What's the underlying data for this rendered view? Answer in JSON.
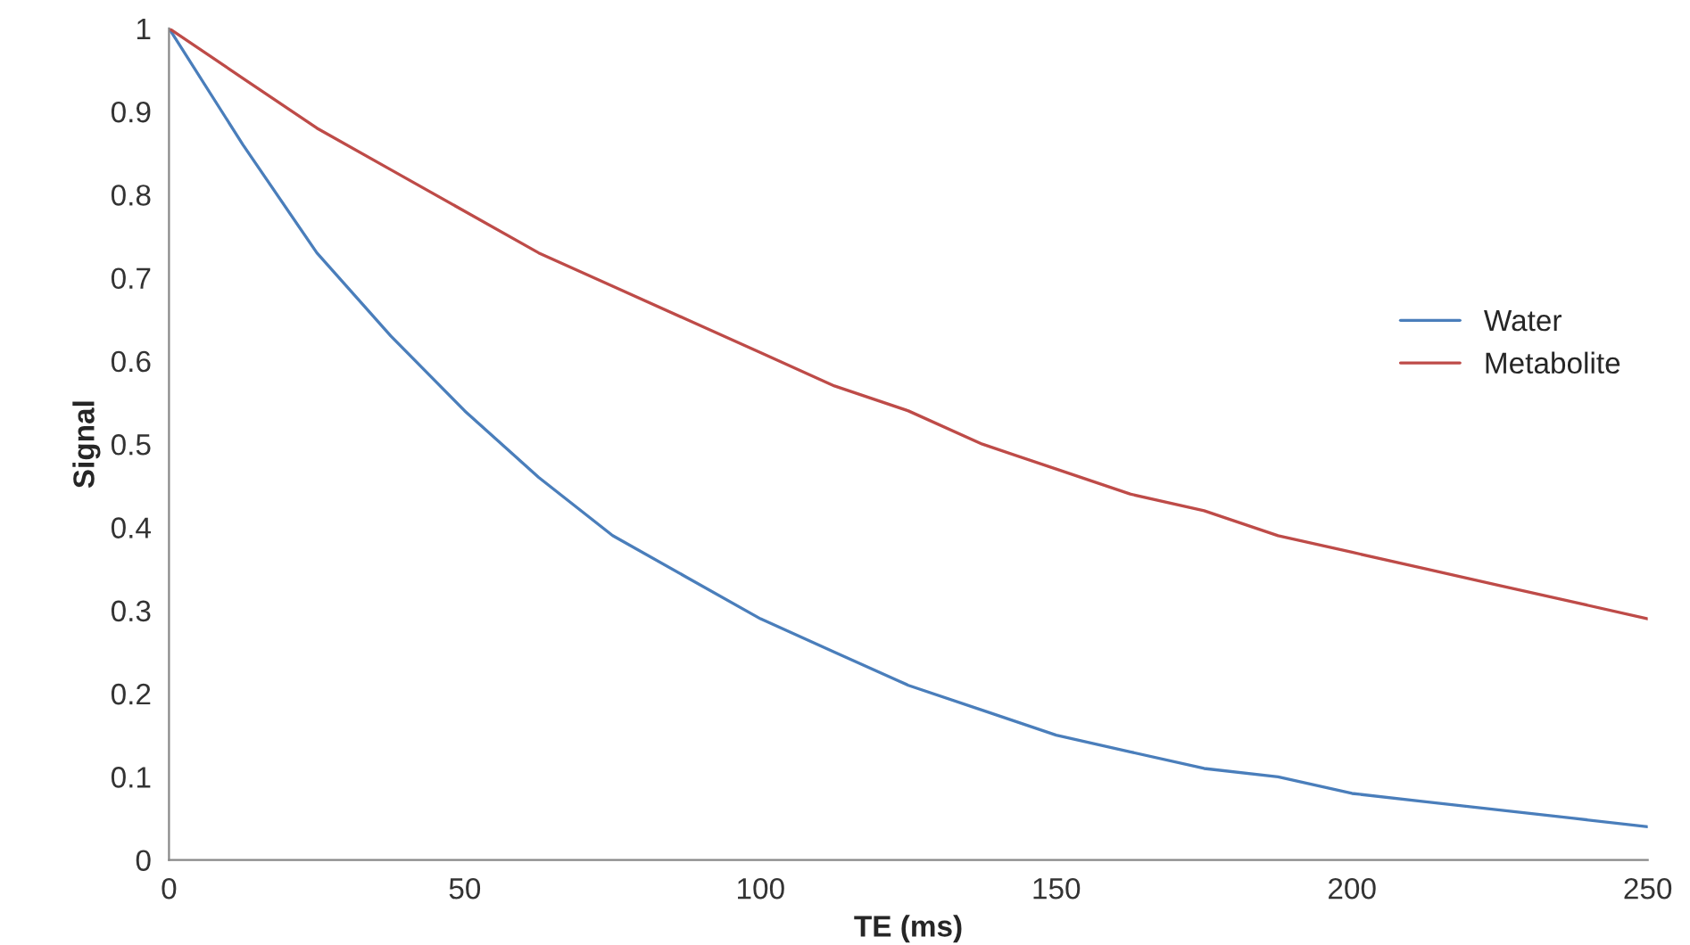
{
  "chart_data": {
    "type": "line",
    "xlabel": "TE (ms)",
    "ylabel": "Signal",
    "x": [
      0,
      12.5,
      25,
      37.5,
      50,
      62.5,
      75,
      87.5,
      100,
      112.5,
      125,
      137.5,
      150,
      162.5,
      175,
      187.5,
      200,
      212.5,
      225,
      237.5,
      250
    ],
    "series": [
      {
        "name": "Water",
        "color": "#4a7ebb",
        "values": [
          1,
          0.86,
          0.73,
          0.63,
          0.54,
          0.46,
          0.39,
          0.34,
          0.29,
          0.25,
          0.21,
          0.18,
          0.15,
          0.13,
          0.11,
          0.1,
          0.08,
          0.07,
          0.06,
          0.05,
          0.04
        ]
      },
      {
        "name": "Metabolite",
        "color": "#be4b48",
        "values": [
          1,
          0.94,
          0.88,
          0.83,
          0.78,
          0.73,
          0.69,
          0.65,
          0.61,
          0.57,
          0.54,
          0.5,
          0.47,
          0.44,
          0.42,
          0.39,
          0.37,
          0.35,
          0.33,
          0.31,
          0.29
        ]
      }
    ],
    "xlim": [
      0,
      250
    ],
    "xticks": [
      0,
      50,
      100,
      150,
      200,
      250
    ],
    "ylim": [
      0,
      1
    ],
    "yticks": [
      0,
      0.1,
      0.2,
      0.3,
      0.4,
      0.5,
      0.6,
      0.7,
      0.8,
      0.9,
      1
    ],
    "grid": false,
    "legend": "right",
    "marker": "none",
    "line_style": "solid"
  }
}
